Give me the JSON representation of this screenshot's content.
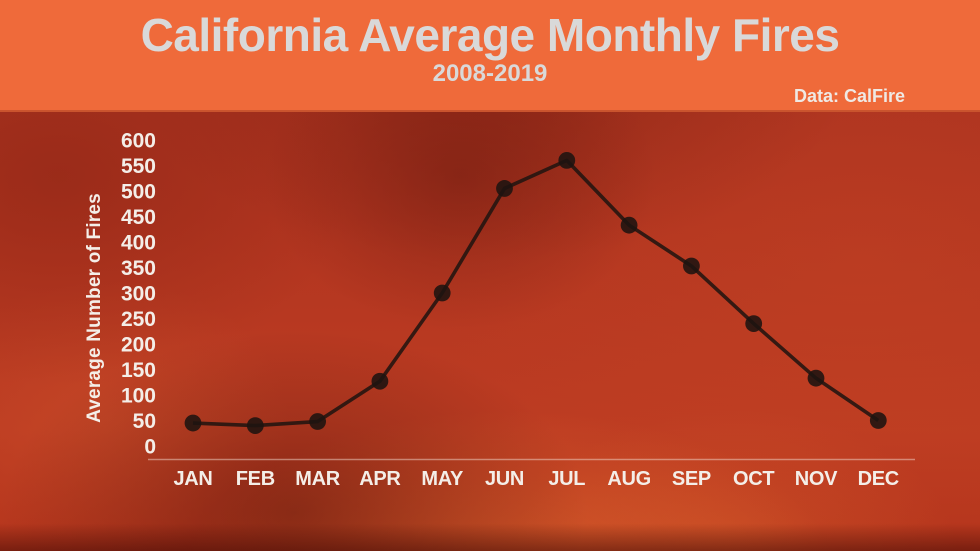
{
  "header": {
    "title": "California Average Monthly Fires",
    "subtitle": "2008-2019",
    "source": "Data: CalFire"
  },
  "colors": {
    "header_bg": "#EF6A3A",
    "title_text": "#D9D9D9",
    "source_text": "#EFE9E4",
    "axis_text": "#F4EEE8",
    "line": "#221510",
    "marker": "#1E1310",
    "axis_line": "#F0D6CA",
    "background_base": "#B23520"
  },
  "chart_data": {
    "type": "line",
    "title": "California Average Monthly Fires",
    "subtitle": "2008-2019",
    "source": "Data: CalFire",
    "categories": [
      "JAN",
      "FEB",
      "MAR",
      "APR",
      "MAY",
      "JUN",
      "JUL",
      "AUG",
      "SEP",
      "OCT",
      "NOV",
      "DEC"
    ],
    "values": [
      45,
      40,
      48,
      127,
      300,
      505,
      560,
      433,
      353,
      240,
      133,
      50
    ],
    "xlabel": "",
    "ylabel": "Average Number of Fires",
    "ylim": [
      0,
      600
    ],
    "ytick_step": 50,
    "grid": false,
    "legend_position": "none",
    "marker": "circle",
    "notes": "single series; dark line with round markers over fire-photo background"
  }
}
